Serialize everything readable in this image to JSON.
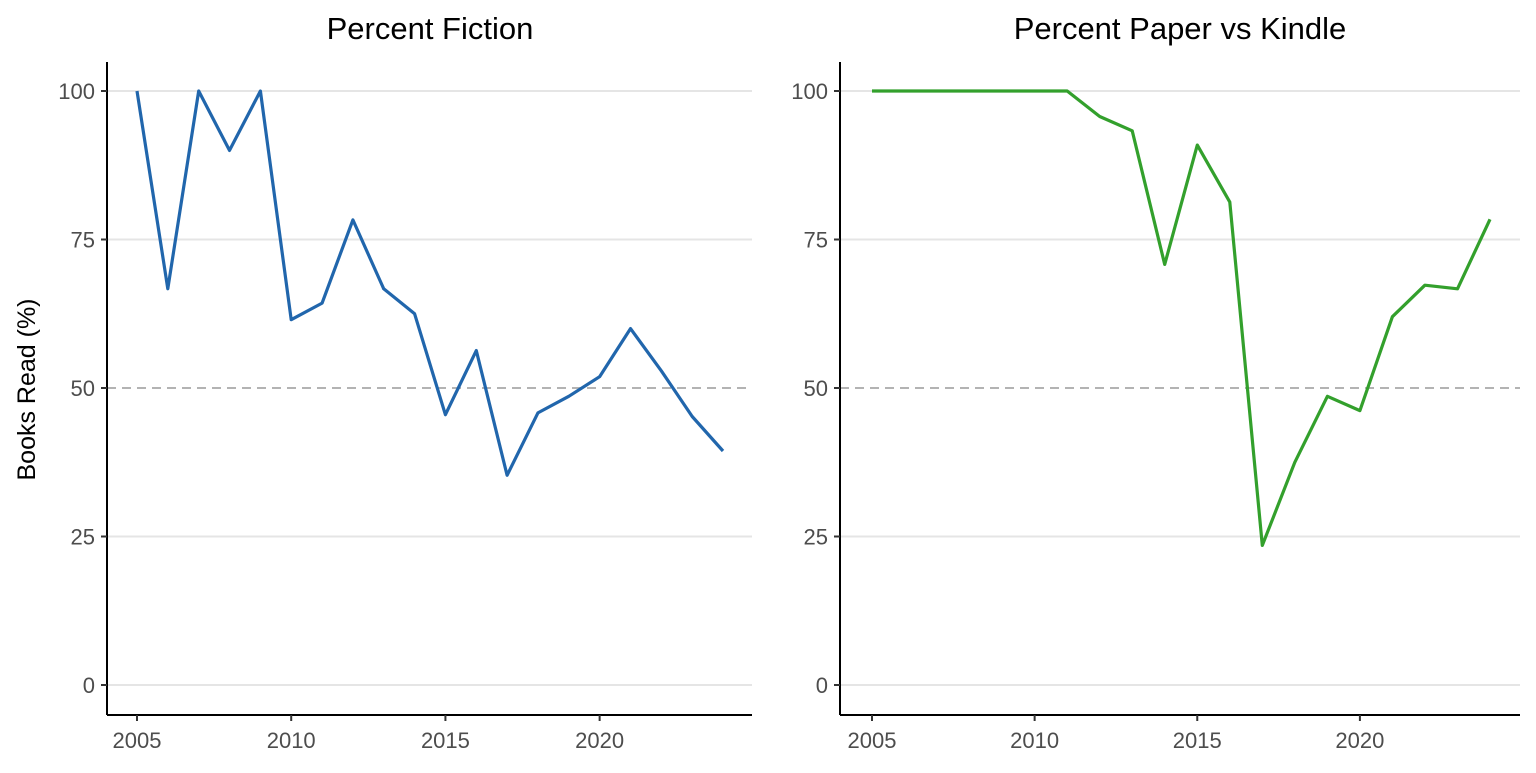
{
  "chart_data": [
    {
      "type": "line",
      "title": "Percent Fiction",
      "xlabel": "",
      "ylabel": "Books Read (%)",
      "xlim": [
        2004,
        2025
      ],
      "ylim": [
        0,
        105
      ],
      "x_ticks": [
        2005,
        2010,
        2015,
        2020
      ],
      "y_ticks": [
        0,
        25,
        50,
        75,
        100
      ],
      "reference_line": {
        "y": 50,
        "style": "dashed",
        "color": "#b3b3b3"
      },
      "grid": "horizontal major",
      "legend": "none",
      "series": [
        {
          "color": "#2166ac",
          "x": [
            2005,
            2006,
            2007,
            2008,
            2009,
            2010,
            2011,
            2012,
            2013,
            2014,
            2015,
            2016,
            2017,
            2018,
            2019,
            2020,
            2021,
            2022,
            2023,
            2024
          ],
          "y": [
            100,
            66.7,
            100,
            90,
            100,
            61.5,
            64.3,
            78.3,
            66.7,
            62.5,
            45.5,
            56.3,
            35.3,
            45.8,
            48.6,
            51.9,
            60,
            52.9,
            45.2,
            39.4
          ]
        }
      ]
    },
    {
      "type": "line",
      "title": "Percent Paper vs Kindle",
      "xlabel": "",
      "ylabel": "",
      "xlim": [
        2004,
        2025
      ],
      "ylim": [
        0,
        105
      ],
      "x_ticks": [
        2005,
        2010,
        2015,
        2020
      ],
      "y_ticks": [
        0,
        25,
        50,
        75,
        100
      ],
      "reference_line": {
        "y": 50,
        "style": "dashed",
        "color": "#b3b3b3"
      },
      "grid": "horizontal major",
      "legend": "none",
      "series": [
        {
          "color": "#33a02c",
          "x": [
            2005,
            2006,
            2007,
            2008,
            2009,
            2010,
            2011,
            2012,
            2013,
            2014,
            2015,
            2016,
            2017,
            2018,
            2019,
            2020,
            2021,
            2022,
            2023,
            2024
          ],
          "y": [
            100,
            100,
            100,
            100,
            100,
            100,
            100,
            95.7,
            93.3,
            70.8,
            90.9,
            81.3,
            23.5,
            37.5,
            48.6,
            46.2,
            62,
            67.3,
            66.7,
            78.4
          ]
        }
      ]
    }
  ]
}
